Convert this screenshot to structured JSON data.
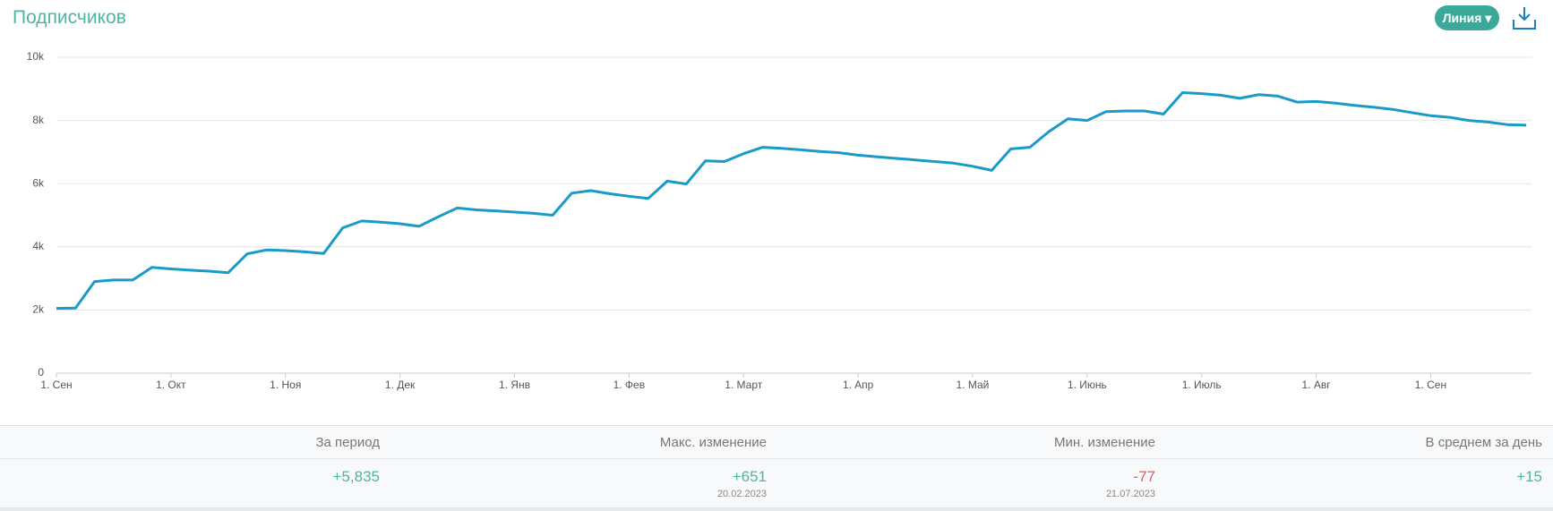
{
  "header": {
    "title": "Подписчиков",
    "button": "Линия"
  },
  "chart_data": {
    "type": "line",
    "categories": [
      "1. Сен",
      null,
      null,
      null,
      null,
      null,
      "1. Окт",
      null,
      null,
      null,
      null,
      null,
      "1. Ноя",
      null,
      null,
      null,
      null,
      null,
      "1. Дек",
      null,
      null,
      null,
      null,
      null,
      "1. Янв",
      null,
      null,
      null,
      null,
      null,
      "1. Фев",
      null,
      null,
      null,
      null,
      null,
      "1. Март",
      null,
      null,
      null,
      null,
      null,
      "1. Апр",
      null,
      null,
      null,
      null,
      null,
      "1. Май",
      null,
      null,
      null,
      null,
      null,
      "1. Июнь",
      null,
      null,
      null,
      null,
      null,
      "1. Июль",
      null,
      null,
      null,
      null,
      null,
      "1. Авг",
      null,
      null,
      null,
      null,
      null,
      "1. Сен",
      null,
      null,
      null,
      null,
      null
    ],
    "values": [
      2050,
      2060,
      2900,
      2950,
      2950,
      3350,
      3300,
      3260,
      3230,
      3180,
      3780,
      3900,
      3880,
      3840,
      3790,
      4600,
      4820,
      4780,
      4730,
      4650,
      4950,
      5230,
      5170,
      5140,
      5100,
      5060,
      5000,
      5700,
      5780,
      5680,
      5600,
      5530,
      6080,
      5990,
      6720,
      6700,
      6950,
      7150,
      7120,
      7070,
      7020,
      6980,
      6900,
      6850,
      6800,
      6750,
      6700,
      6650,
      6550,
      6420,
      7100,
      7150,
      7650,
      8050,
      8000,
      8280,
      8300,
      8300,
      8200,
      8880,
      8850,
      8800,
      8700,
      8820,
      8770,
      8580,
      8600,
      8550,
      8480,
      8420,
      8350,
      8250,
      8150,
      8100,
      8000,
      7950,
      7870,
      7850
    ],
    "color": "#1a9bc7",
    "ylim": [
      0,
      10000
    ],
    "yticks": [
      0,
      {
        "value": 2000,
        "label": "2k"
      },
      {
        "value": 4000,
        "label": "4k"
      },
      {
        "value": 6000,
        "label": "6k"
      },
      {
        "value": 8000,
        "label": "8k"
      },
      {
        "value": 10000,
        "label": "10k"
      }
    ],
    "grid": true
  },
  "stats": [
    {
      "label": "За период",
      "value": "+5,835"
    },
    {
      "label": "Макс. изменение",
      "value": "+651",
      "date": "20.02.2023"
    },
    {
      "label": "Мин. изменение",
      "value": "-77",
      "date": "21.07.2023"
    },
    {
      "label": "В среднем за день",
      "value": "+15"
    }
  ]
}
